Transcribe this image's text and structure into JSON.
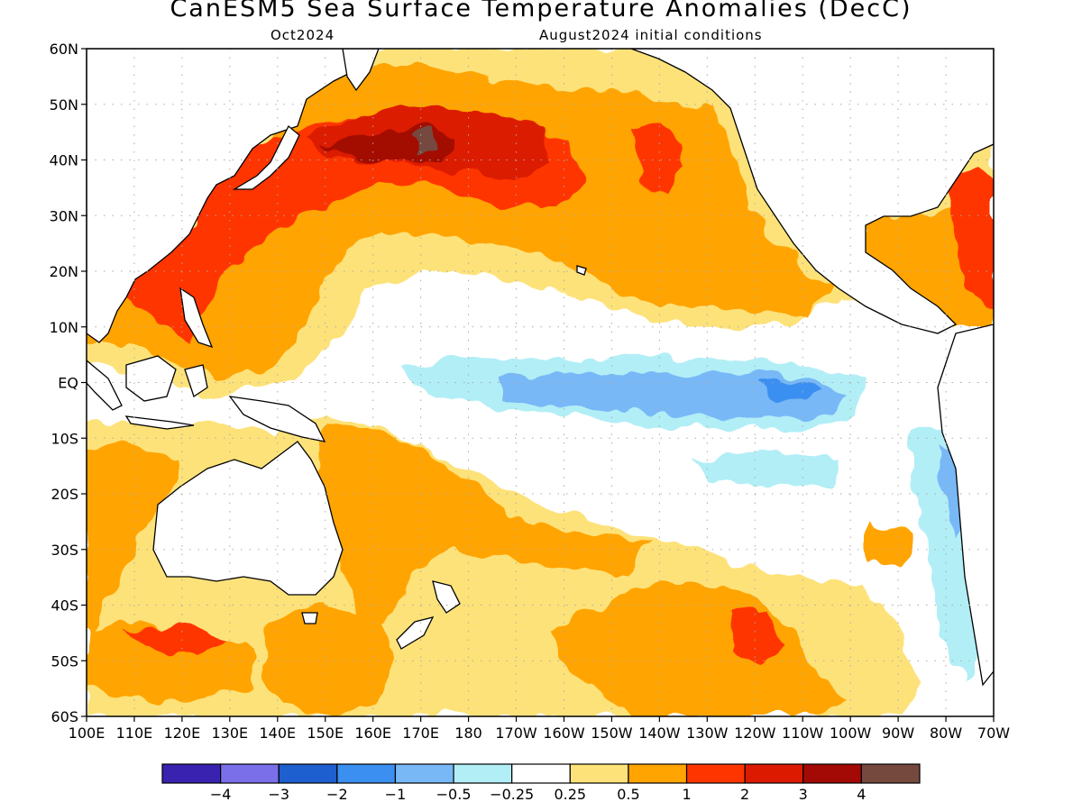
{
  "title": "CanESM5 Sea Surface Temperature Anomalies (DecC)",
  "subtitle_left": "Oct2024",
  "subtitle_right": "August2024 initial conditions",
  "lat_labels": [
    "60N",
    "50N",
    "40N",
    "30N",
    "20N",
    "10N",
    "EQ",
    "10S",
    "20S",
    "30S",
    "40S",
    "50S",
    "60S"
  ],
  "lon_labels": [
    "100E",
    "110E",
    "120E",
    "130E",
    "140E",
    "150E",
    "160E",
    "170E",
    "180",
    "170W",
    "160W",
    "150W",
    "140W",
    "130W",
    "120W",
    "110W",
    "100W",
    "90W",
    "80W",
    "70W"
  ],
  "colorbar": {
    "colors": [
      "#3a22b0",
      "#7b6fe9",
      "#1e5fcf",
      "#3b8ff0",
      "#78b8f7",
      "#b2eef6",
      "#ffffff",
      "#fde27a",
      "#ffa400",
      "#ff3500",
      "#dc1a00",
      "#a30a06",
      "#76493f"
    ],
    "labels": [
      "-4",
      "-3",
      "-2",
      "-1",
      "-0.5",
      "-0.25",
      "0.25",
      "0.5",
      "1",
      "2",
      "3",
      "4"
    ]
  },
  "colors": {
    "land": "#ffffff",
    "coast": "#000000",
    "grid": "#aaaaaa"
  }
}
